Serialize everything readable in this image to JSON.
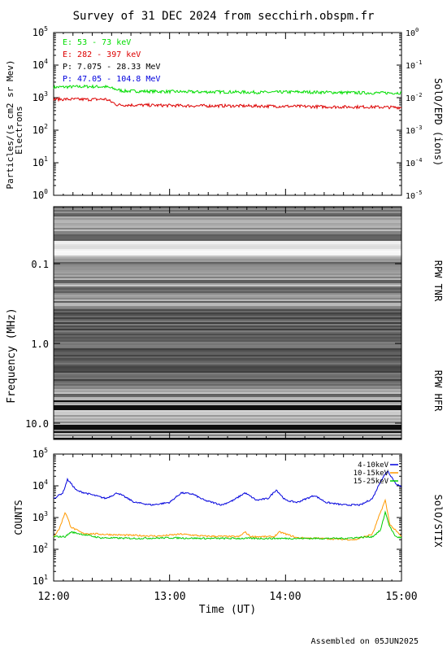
{
  "title": "Survey of 31 DEC 2024 from secchirh.obspm.fr",
  "footer": "Assembled on 05JUN2025",
  "chart_data": [
    {
      "type": "line",
      "panel": "epd",
      "ylabel_left": "Particles/(s cm2 sr Mev)",
      "ylabel_left2": "Electrons",
      "ylabel_right": "SolO/EPD (ions)",
      "log_scale": true,
      "ylim": [
        1,
        100000
      ],
      "left_ticks": [
        {
          "v": 1,
          "e": "0"
        },
        {
          "v": 10,
          "e": "1"
        },
        {
          "v": 100,
          "e": "2"
        },
        {
          "v": 1000,
          "e": "3"
        },
        {
          "v": 10000,
          "e": "4"
        },
        {
          "v": 100000,
          "e": "5"
        }
      ],
      "right_ticks": [
        "-5",
        "-4",
        "-3",
        "-2",
        "-1",
        "0"
      ],
      "x_range_hours": [
        12,
        15
      ],
      "series": [
        {
          "name": "E: 53 - 73 keV",
          "color": "#00dd00",
          "x": [
            12.0,
            12.3,
            12.45,
            12.6,
            12.9,
            13.2,
            13.5,
            13.8,
            14.1,
            14.4,
            14.7,
            15.0
          ],
          "values": [
            2100,
            2200,
            2150,
            1600,
            1550,
            1500,
            1500,
            1450,
            1500,
            1450,
            1400,
            1400
          ]
        },
        {
          "name": "E: 282 - 397 keV",
          "color": "#dd0000",
          "x": [
            12.0,
            12.3,
            12.45,
            12.55,
            12.9,
            13.2,
            13.5,
            13.8,
            14.1,
            14.4,
            14.7,
            15.0
          ],
          "values": [
            900,
            880,
            900,
            600,
            580,
            560,
            560,
            550,
            540,
            520,
            520,
            500
          ]
        },
        {
          "name": "P: 7.075 - 28.33 MeV",
          "color": "#000000",
          "x": [],
          "values": []
        },
        {
          "name": "P: 47.05 - 104.8 MeV",
          "color": "#0000dd",
          "x": [],
          "values": []
        }
      ]
    },
    {
      "type": "heatmap",
      "panel": "rpw",
      "ylabel": "Frequency (MHz)",
      "yticks": [
        "0.1",
        "1.0",
        "10.0"
      ],
      "right_labels": [
        "RPW TNR",
        "RPW HFR"
      ],
      "colormap": "grayscale"
    },
    {
      "type": "line",
      "panel": "stix",
      "ylabel": "COUNTS",
      "ylabel_right": "SolO/STIX",
      "log_scale": true,
      "ylim": [
        10,
        100000
      ],
      "ticks": [
        {
          "v": 10,
          "e": "1"
        },
        {
          "v": 100,
          "e": "2"
        },
        {
          "v": 1000,
          "e": "3"
        },
        {
          "v": 10000,
          "e": "4"
        },
        {
          "v": 100000,
          "e": "5"
        }
      ],
      "xlabel": "Time (UT)",
      "xticks": [
        "12:00",
        "13:00",
        "14:00",
        "15:00"
      ],
      "x_range_hours": [
        12,
        15
      ],
      "series": [
        {
          "name": "4-10keV",
          "color": "#0000dd",
          "x": [
            12.0,
            12.08,
            12.12,
            12.2,
            12.35,
            12.45,
            12.55,
            12.7,
            12.85,
            13.0,
            13.1,
            13.2,
            13.3,
            13.45,
            13.55,
            13.65,
            13.75,
            13.85,
            13.92,
            14.0,
            14.1,
            14.25,
            14.35,
            14.5,
            14.65,
            14.75,
            14.82,
            14.88,
            14.95,
            15.0
          ],
          "values": [
            4000,
            6000,
            16000,
            7000,
            5000,
            4000,
            6000,
            3000,
            2500,
            3000,
            6000,
            5500,
            3500,
            2500,
            3500,
            6000,
            3500,
            4000,
            7500,
            3500,
            3000,
            5000,
            3000,
            2500,
            2500,
            4000,
            14000,
            30000,
            12000,
            9000
          ]
        },
        {
          "name": "10-15keV",
          "color": "#ff9900",
          "x": [
            12.0,
            12.05,
            12.1,
            12.15,
            12.25,
            12.4,
            12.6,
            12.9,
            13.1,
            13.3,
            13.6,
            13.65,
            13.7,
            13.9,
            13.95,
            14.1,
            14.3,
            14.6,
            14.75,
            14.82,
            14.86,
            14.9,
            15.0
          ],
          "values": [
            250,
            450,
            1500,
            500,
            320,
            300,
            280,
            260,
            300,
            260,
            250,
            350,
            250,
            250,
            350,
            230,
            220,
            200,
            300,
            1500,
            3500,
            600,
            250
          ]
        },
        {
          "name": "15-25keV",
          "color": "#00cc00",
          "x": [
            12.0,
            12.1,
            12.15,
            12.4,
            12.7,
            13.0,
            13.3,
            13.6,
            13.9,
            14.2,
            14.5,
            14.75,
            14.82,
            14.86,
            14.9,
            14.95,
            15.0
          ],
          "values": [
            250,
            250,
            350,
            230,
            220,
            230,
            220,
            220,
            220,
            220,
            220,
            250,
            400,
            1500,
            500,
            250,
            230
          ]
        }
      ]
    }
  ]
}
